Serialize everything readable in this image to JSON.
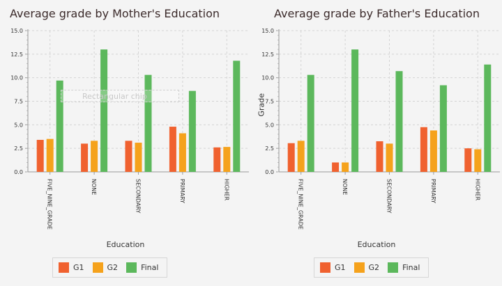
{
  "legend": [
    {
      "label": "G1",
      "color": "#f0612f"
    },
    {
      "label": "G2",
      "color": "#f5a21c"
    },
    {
      "label": "Final",
      "color": "#5cb85c"
    }
  ],
  "ghost_label": "Rectangular chip",
  "chart_data": [
    {
      "type": "bar",
      "title": "Average grade by Mother's Education",
      "xlabel": "Education",
      "ylabel": "",
      "ylim": [
        0,
        15
      ],
      "yticks": [
        "0.0",
        "2.5",
        "5.0",
        "7.5",
        "10.0",
        "12.5",
        "15.0"
      ],
      "grid": true,
      "legend_position": "bottom",
      "categories": [
        "FIVE_NINE_GRADE",
        "NONE",
        "SECONDARY",
        "PRIMARY",
        "HIGHER"
      ],
      "series": [
        {
          "name": "G1",
          "values": [
            3.4,
            3.0,
            3.3,
            4.8,
            2.6
          ]
        },
        {
          "name": "G2",
          "values": [
            3.5,
            3.3,
            3.1,
            4.1,
            2.65
          ]
        },
        {
          "name": "Final",
          "values": [
            9.7,
            13.0,
            10.3,
            8.6,
            11.8
          ]
        }
      ]
    },
    {
      "type": "bar",
      "title": "Average grade by Father's Education",
      "xlabel": "Education",
      "ylabel": "Grade",
      "ylim": [
        0,
        15
      ],
      "yticks": [
        "0.0",
        "2.5",
        "5.0",
        "7.5",
        "10.0",
        "12.5",
        "15.0"
      ],
      "grid": true,
      "legend_position": "bottom",
      "categories": [
        "FIVE_NINE_GRADE",
        "NONE",
        "SECONDARY",
        "PRIMARY",
        "HIGHER"
      ],
      "series": [
        {
          "name": "G1",
          "values": [
            3.05,
            1.0,
            3.25,
            4.75,
            2.5
          ]
        },
        {
          "name": "G2",
          "values": [
            3.3,
            1.0,
            3.0,
            4.4,
            2.4
          ]
        },
        {
          "name": "Final",
          "values": [
            10.3,
            13.0,
            10.7,
            9.2,
            11.4
          ]
        }
      ]
    }
  ]
}
